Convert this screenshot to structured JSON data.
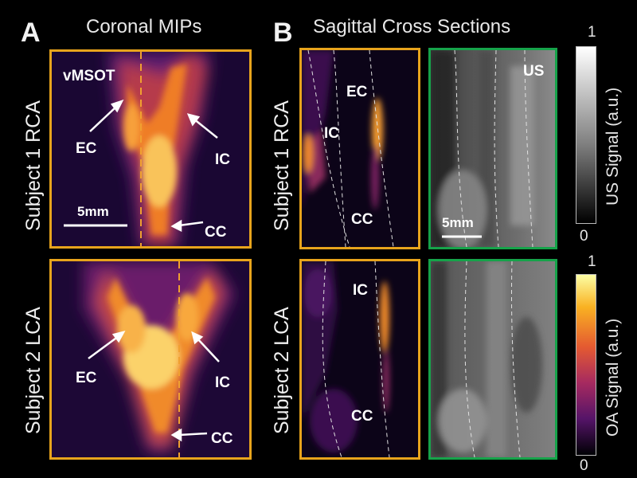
{
  "panel_a": {
    "letter": "A",
    "title": "Coronal MIPs",
    "rows": [
      {
        "label": "Subject 1 RCA",
        "modality_label": "vMSOT",
        "annotations": [
          "EC",
          "IC",
          "CC"
        ],
        "scale_bar": "5mm"
      },
      {
        "label": "Subject 2 LCA",
        "annotations": [
          "EC",
          "IC",
          "CC"
        ]
      }
    ]
  },
  "panel_b": {
    "letter": "B",
    "title": "Sagittal Cross Sections",
    "rows": [
      {
        "label": "Subject 1 RCA",
        "oa_annotations": [
          "EC",
          "IC",
          "CC"
        ],
        "us_label": "US",
        "scale_bar": "5mm"
      },
      {
        "label": "Subject 2 LCA",
        "oa_annotations": [
          "IC",
          "CC"
        ]
      }
    ]
  },
  "colorbars": {
    "us": {
      "max": "1",
      "min": "0",
      "title": "US Signal (a.u.)",
      "colormap": "grayscale"
    },
    "oa": {
      "max": "1",
      "min": "0",
      "title": "OA Signal (a.u.)",
      "colormap": "inferno"
    }
  },
  "colors": {
    "oa_frame": "#e8a41c",
    "us_frame": "#16a34a",
    "dashed_line_coronal": "#f0a030"
  }
}
